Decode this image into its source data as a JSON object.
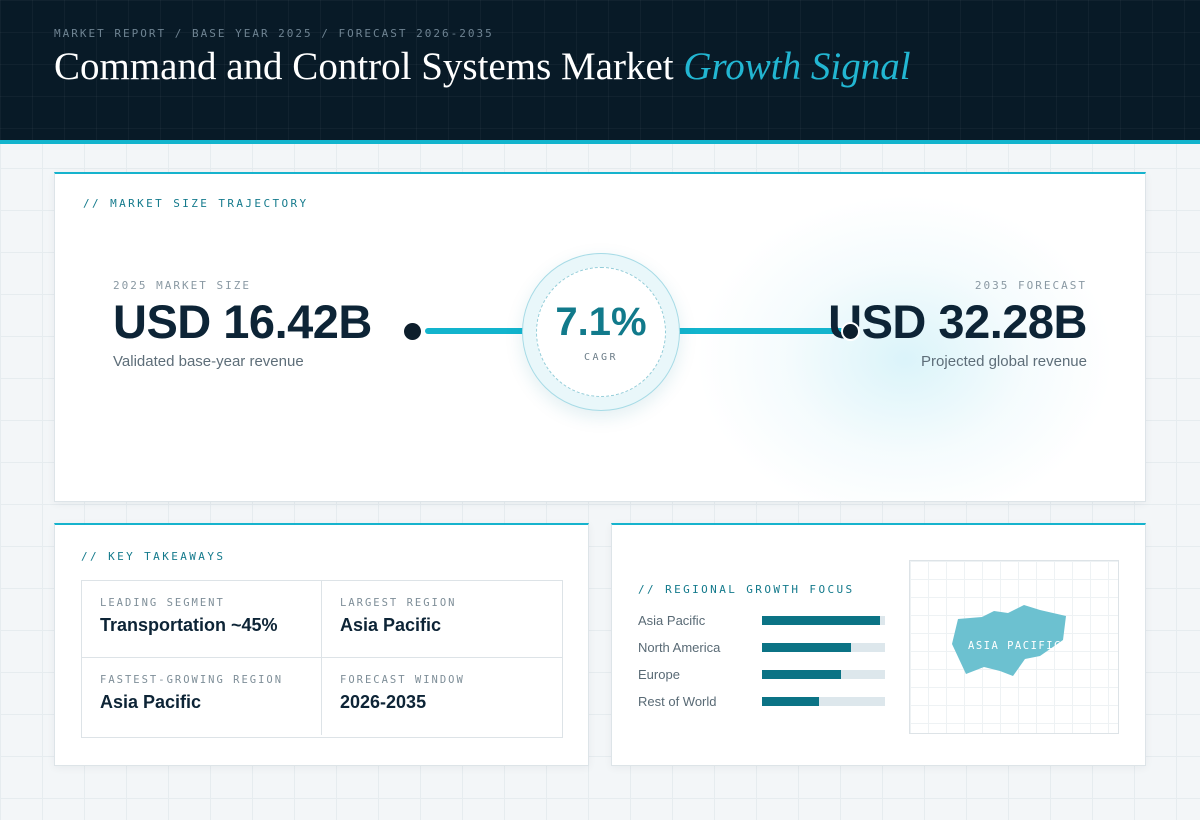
{
  "header": {
    "breadcrumb": "MARKET REPORT / BASE YEAR 2025 / FORECAST 2026-2035",
    "title_main": "Command and Control Systems Market",
    "title_accent": "Growth Signal"
  },
  "trajectory": {
    "section_label": "// MARKET SIZE TRAJECTORY",
    "start": {
      "label": "2025 MARKET SIZE",
      "value": "USD 16.42B",
      "sub": "Validated base-year revenue"
    },
    "end": {
      "label": "2035 FORECAST",
      "value": "USD 32.28B",
      "sub": "Projected global revenue"
    },
    "cagr": {
      "value": "7.1%",
      "label": "CAGR"
    }
  },
  "takeaways": {
    "section_label": "// KEY TAKEAWAYS",
    "items": [
      {
        "label": "LEADING SEGMENT",
        "value": "Transportation ~45%"
      },
      {
        "label": "LARGEST REGION",
        "value": "Asia Pacific"
      },
      {
        "label": "FASTEST-GROWING REGION",
        "value": "Asia Pacific"
      },
      {
        "label": "FORECAST WINDOW",
        "value": "2026-2035"
      }
    ]
  },
  "regional": {
    "section_label": "// REGIONAL GROWTH FOCUS",
    "bars": [
      {
        "name": "Asia Pacific",
        "value": 0.96
      },
      {
        "name": "North America",
        "value": 0.72
      },
      {
        "name": "Europe",
        "value": 0.64
      },
      {
        "name": "Rest of World",
        "value": 0.46
      }
    ],
    "map_label": "ASIA PACIFIC"
  },
  "colors": {
    "header_bg": "#081a27",
    "accent": "#16b3cd",
    "bar_fill": "#0b7385",
    "map_shape": "#6cc1d0",
    "text_dark": "#0d2436"
  }
}
